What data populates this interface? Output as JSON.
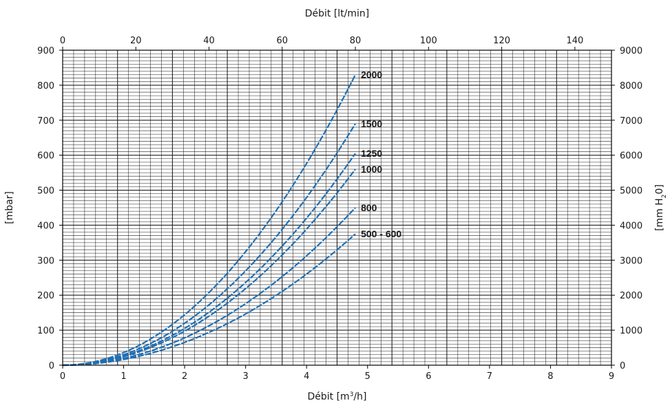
{
  "chart_data": {
    "type": "line",
    "xlabel_bottom": {
      "text": "Débit [m",
      "sup": "3",
      "tail": "/h]"
    },
    "xlabel_top": "Débit [lt/min]",
    "ylabel_left": "[mbar]",
    "ylabel_right": {
      "text": "[mm H",
      "sub": "2",
      "tail": "0]"
    },
    "xlim": [
      0,
      9
    ],
    "ylim": [
      0,
      900
    ],
    "x_ticks": [
      "0",
      "1",
      "2",
      "3",
      "4",
      "5",
      "6",
      "7",
      "8",
      "9"
    ],
    "y_left_ticks": [
      "0",
      "100",
      "200",
      "300",
      "400",
      "500",
      "600",
      "700",
      "800",
      "900"
    ],
    "y_right_ticks": [
      "0",
      "1000",
      "2000",
      "3000",
      "4000",
      "5000",
      "6000",
      "7000",
      "8000",
      "9000"
    ],
    "x_top_ticks": [
      "0",
      "20",
      "40",
      "60",
      "80",
      "100",
      "120",
      "140"
    ],
    "x_top_lim": [
      0,
      150
    ],
    "grid": true,
    "line_color": "#1f6fb4",
    "x_max_data": 4.8,
    "series": [
      {
        "name": "2000",
        "y_end": 830
      },
      {
        "name": "1500",
        "y_end": 690
      },
      {
        "name": "1250",
        "y_end": 605
      },
      {
        "name": "1000",
        "y_end": 560
      },
      {
        "name": "800",
        "y_end": 450
      },
      {
        "name": "500 - 600",
        "y_end": 375
      }
    ]
  }
}
